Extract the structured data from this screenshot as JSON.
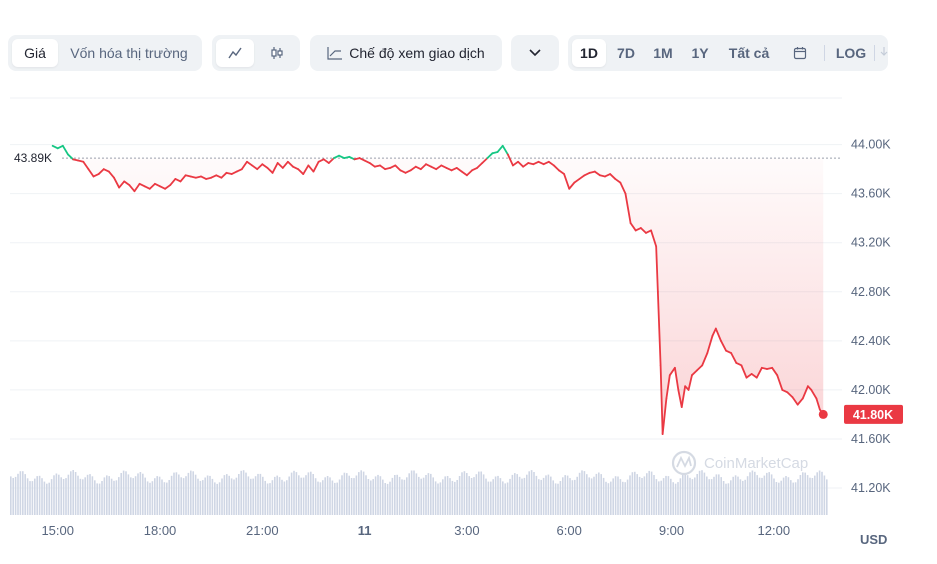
{
  "toolbar": {
    "tab_price": "Giá",
    "tab_marketcap": "Vốn hóa thị trường",
    "view_line_icon": "line-chart-icon",
    "view_candle_icon": "candlestick-icon",
    "trading_mode": "Chế độ xem giao dịch",
    "trading_mode_icon": "trend-icon",
    "more_icon": "chevron-down-icon",
    "ranges": [
      "1D",
      "7D",
      "1M",
      "1Y",
      "Tất cả"
    ],
    "calendar_icon": "calendar-icon",
    "log": "LOG",
    "download_icon": "download-icon"
  },
  "watermark": "CoinMarketCap",
  "currency": "USD",
  "colors": {
    "up": "#16c784",
    "down": "#ea3943",
    "accent_label_bg": "#ea3943",
    "baseline": "#9aa0ac",
    "grid": "#eff2f5",
    "volume": "#cfd6e4"
  },
  "chart_data": {
    "type": "line",
    "x_ticks": [
      {
        "t": 15.0,
        "label": "15:00"
      },
      {
        "t": 18.0,
        "label": "18:00"
      },
      {
        "t": 21.0,
        "label": "21:00"
      },
      {
        "t": 24.0,
        "label": "11"
      },
      {
        "t": 27.0,
        "label": "3:00"
      },
      {
        "t": 30.0,
        "label": "6:00"
      },
      {
        "t": 33.0,
        "label": "9:00"
      },
      {
        "t": 36.0,
        "label": "12:00"
      }
    ],
    "y_ticks": [
      {
        "v": 44000,
        "label": "44.00K"
      },
      {
        "v": 43600,
        "label": "43.60K"
      },
      {
        "v": 43200,
        "label": "43.20K"
      },
      {
        "v": 42800,
        "label": "42.80K"
      },
      {
        "v": 42400,
        "label": "42.40K"
      },
      {
        "v": 42000,
        "label": "42.00K"
      },
      {
        "v": 41600,
        "label": "41.60K"
      },
      {
        "v": 41200,
        "label": "41.20K"
      }
    ],
    "ylim": [
      40980,
      44380
    ],
    "xlim": [
      13.6,
      38.0
    ],
    "baseline": {
      "value": 43890,
      "label": "43.89K"
    },
    "last": {
      "value": 41800,
      "label": "41.80K"
    },
    "series": [
      {
        "points": [
          [
            14.85,
            43.99
          ],
          [
            15.0,
            43.97
          ],
          [
            15.15,
            43.99
          ],
          [
            15.3,
            43.92
          ],
          [
            15.45,
            43.88
          ],
          [
            15.6,
            43.87
          ],
          [
            15.75,
            43.86
          ],
          [
            15.9,
            43.8
          ],
          [
            16.05,
            43.74
          ],
          [
            16.2,
            43.76
          ],
          [
            16.35,
            43.8
          ],
          [
            16.5,
            43.78
          ],
          [
            16.65,
            43.73
          ],
          [
            16.8,
            43.65
          ],
          [
            16.95,
            43.7
          ],
          [
            17.1,
            43.67
          ],
          [
            17.25,
            43.62
          ],
          [
            17.4,
            43.68
          ],
          [
            17.55,
            43.66
          ],
          [
            17.7,
            43.64
          ],
          [
            17.85,
            43.68
          ],
          [
            18.0,
            43.66
          ],
          [
            18.15,
            43.64
          ],
          [
            18.3,
            43.67
          ],
          [
            18.45,
            43.72
          ],
          [
            18.6,
            43.7
          ],
          [
            18.75,
            43.75
          ],
          [
            18.9,
            43.74
          ],
          [
            19.05,
            43.73
          ],
          [
            19.2,
            43.74
          ],
          [
            19.35,
            43.72
          ],
          [
            19.5,
            43.73
          ],
          [
            19.65,
            43.75
          ],
          [
            19.8,
            43.73
          ],
          [
            19.95,
            43.77
          ],
          [
            20.1,
            43.76
          ],
          [
            20.25,
            43.78
          ],
          [
            20.4,
            43.8
          ],
          [
            20.55,
            43.86
          ],
          [
            20.7,
            43.83
          ],
          [
            20.85,
            43.8
          ],
          [
            21.0,
            43.84
          ],
          [
            21.15,
            43.81
          ],
          [
            21.3,
            43.77
          ],
          [
            21.45,
            43.85
          ],
          [
            21.6,
            43.81
          ],
          [
            21.75,
            43.86
          ],
          [
            21.9,
            43.82
          ],
          [
            22.05,
            43.8
          ],
          [
            22.2,
            43.76
          ],
          [
            22.35,
            43.83
          ],
          [
            22.5,
            43.78
          ],
          [
            22.65,
            43.86
          ],
          [
            22.8,
            43.88
          ],
          [
            22.95,
            43.85
          ],
          [
            23.1,
            43.89
          ],
          [
            23.25,
            43.91
          ],
          [
            23.4,
            43.89
          ],
          [
            23.55,
            43.9
          ],
          [
            23.7,
            43.88
          ],
          [
            23.85,
            43.89
          ],
          [
            24.0,
            43.87
          ],
          [
            24.15,
            43.85
          ],
          [
            24.3,
            43.82
          ],
          [
            24.45,
            43.83
          ],
          [
            24.6,
            43.8
          ],
          [
            24.75,
            43.81
          ],
          [
            24.9,
            43.83
          ],
          [
            25.05,
            43.79
          ],
          [
            25.2,
            43.77
          ],
          [
            25.35,
            43.79
          ],
          [
            25.5,
            43.82
          ],
          [
            25.65,
            43.8
          ],
          [
            25.8,
            43.84
          ],
          [
            25.95,
            43.82
          ],
          [
            26.1,
            43.8
          ],
          [
            26.25,
            43.83
          ],
          [
            26.4,
            43.81
          ],
          [
            26.55,
            43.79
          ],
          [
            26.7,
            43.81
          ],
          [
            26.85,
            43.78
          ],
          [
            27.0,
            43.75
          ],
          [
            27.15,
            43.79
          ],
          [
            27.3,
            43.81
          ],
          [
            27.45,
            43.85
          ],
          [
            27.6,
            43.89
          ],
          [
            27.75,
            43.93
          ],
          [
            27.9,
            43.94
          ],
          [
            28.05,
            43.99
          ],
          [
            28.2,
            43.92
          ],
          [
            28.35,
            43.83
          ],
          [
            28.5,
            43.86
          ],
          [
            28.65,
            43.82
          ],
          [
            28.8,
            43.85
          ],
          [
            28.95,
            43.84
          ],
          [
            29.1,
            43.86
          ],
          [
            29.25,
            43.84
          ],
          [
            29.4,
            43.86
          ],
          [
            29.55,
            43.83
          ],
          [
            29.7,
            43.79
          ],
          [
            29.85,
            43.76
          ],
          [
            30.0,
            43.64
          ],
          [
            30.15,
            43.69
          ],
          [
            30.3,
            43.72
          ],
          [
            30.45,
            43.75
          ],
          [
            30.6,
            43.77
          ],
          [
            30.75,
            43.78
          ],
          [
            30.9,
            43.75
          ],
          [
            31.05,
            43.74
          ],
          [
            31.2,
            43.76
          ],
          [
            31.35,
            43.72
          ],
          [
            31.5,
            43.69
          ],
          [
            31.65,
            43.6
          ],
          [
            31.8,
            43.36
          ],
          [
            31.95,
            43.3
          ],
          [
            32.1,
            43.32
          ],
          [
            32.25,
            43.28
          ],
          [
            32.4,
            43.3
          ],
          [
            32.55,
            43.17
          ],
          [
            32.6,
            42.8
          ],
          [
            32.68,
            42.2
          ],
          [
            32.74,
            41.64
          ],
          [
            32.85,
            41.93
          ],
          [
            32.95,
            42.12
          ],
          [
            33.1,
            42.18
          ],
          [
            33.2,
            42.0
          ],
          [
            33.3,
            41.86
          ],
          [
            33.4,
            42.03
          ],
          [
            33.5,
            42.0
          ],
          [
            33.6,
            42.12
          ],
          [
            33.75,
            42.16
          ],
          [
            33.9,
            42.2
          ],
          [
            34.05,
            42.3
          ],
          [
            34.2,
            42.44
          ],
          [
            34.3,
            42.5
          ],
          [
            34.45,
            42.4
          ],
          [
            34.6,
            42.32
          ],
          [
            34.75,
            42.3
          ],
          [
            34.9,
            42.22
          ],
          [
            35.05,
            42.2
          ],
          [
            35.2,
            42.1
          ],
          [
            35.35,
            42.13
          ],
          [
            35.5,
            42.1
          ],
          [
            35.65,
            42.18
          ],
          [
            35.8,
            42.17
          ],
          [
            35.95,
            42.18
          ],
          [
            36.1,
            42.12
          ],
          [
            36.25,
            42.0
          ],
          [
            36.4,
            41.98
          ],
          [
            36.55,
            41.94
          ],
          [
            36.7,
            41.88
          ],
          [
            36.85,
            41.93
          ],
          [
            37.0,
            42.03
          ],
          [
            37.1,
            42.0
          ],
          [
            37.25,
            41.93
          ],
          [
            37.35,
            41.84
          ],
          [
            37.45,
            41.8
          ]
        ]
      }
    ]
  }
}
